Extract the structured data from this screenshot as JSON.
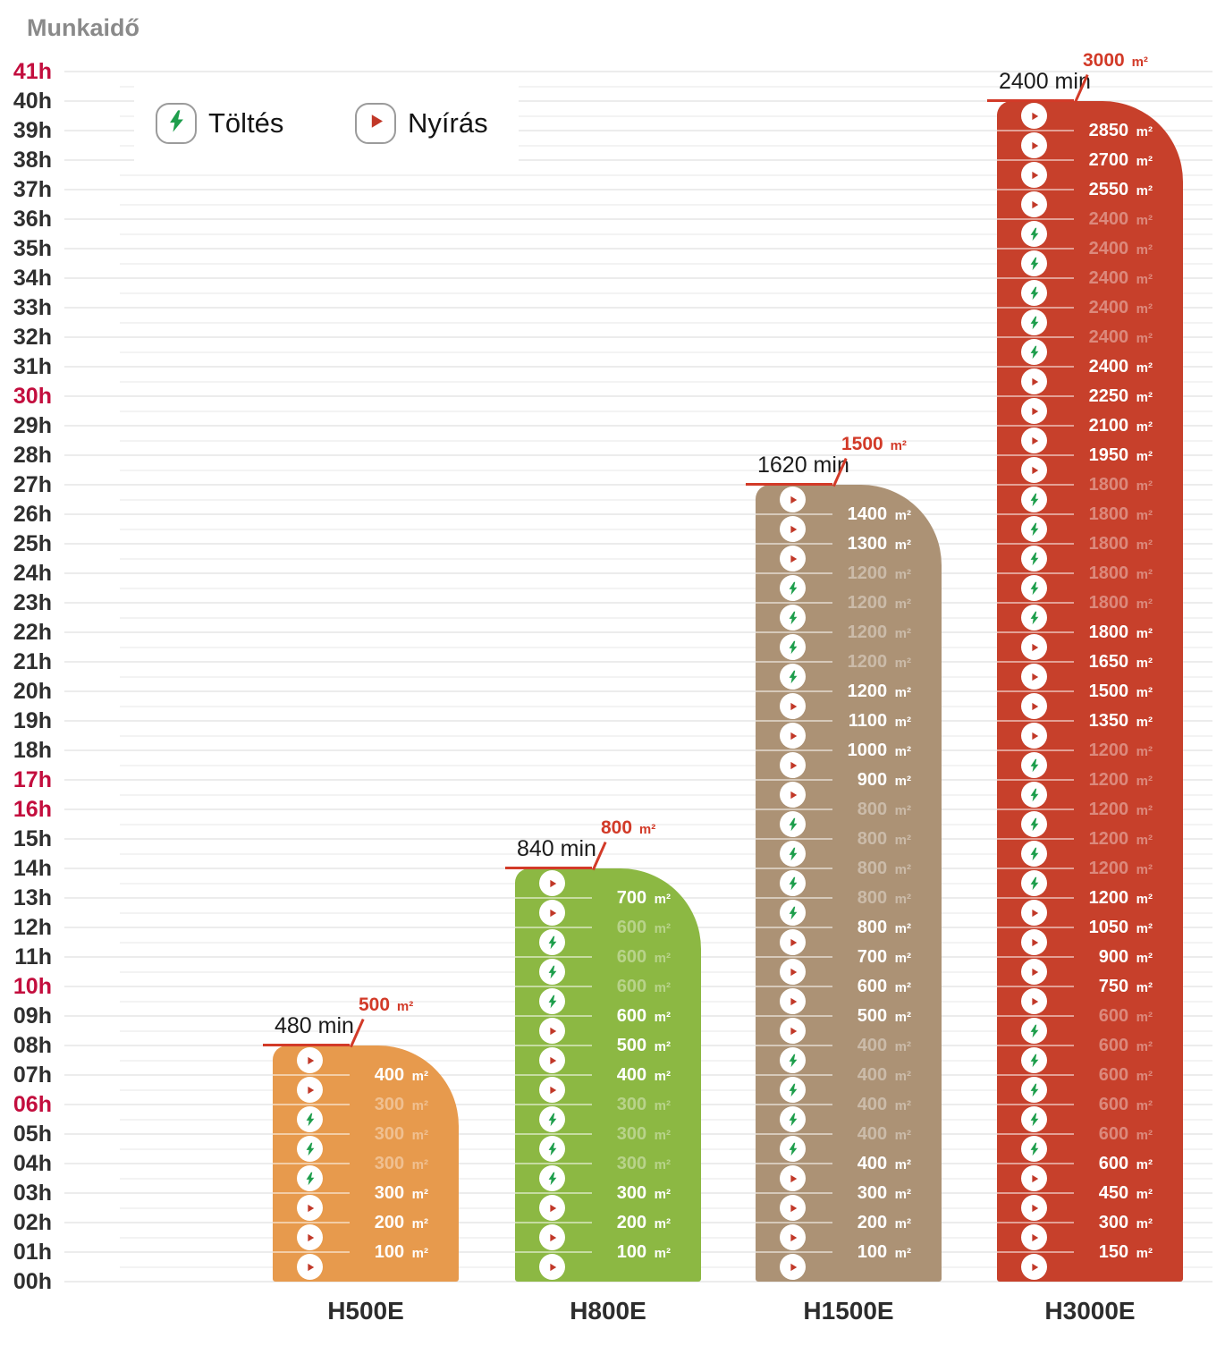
{
  "title": "Munkaidő",
  "legend": {
    "charge_label": "Töltés",
    "mow_label": "Nyírás"
  },
  "colors": {
    "h500e_bar": "#E79A4D",
    "h800e_bar": "#8CB843",
    "h1500e_bar": "#AC9275",
    "h3000e_bar": "#C7402B",
    "axis_dark": "#2F2F2F",
    "axis_red": "#C30E3E",
    "callout_red": "#D23A28",
    "mow_icon_red": "#C13828",
    "charge_icon_green": "#1E9E4C",
    "title_gray": "#8A8A8A"
  },
  "chart_data": {
    "type": "bar",
    "title": "Munkaidő",
    "categories": [
      "H500E",
      "H800E",
      "H1500E",
      "H3000E"
    ],
    "legend": [
      "Töltés",
      "Nyírás"
    ],
    "area_unit": "m²",
    "y_axis": {
      "unit": "h",
      "min": 0,
      "max": 41,
      "tick_labels": [
        "00h",
        "01h",
        "02h",
        "03h",
        "04h",
        "05h",
        "06h",
        "07h",
        "08h",
        "09h",
        "10h",
        "11h",
        "12h",
        "13h",
        "14h",
        "15h",
        "16h",
        "17h",
        "18h",
        "19h",
        "20h",
        "21h",
        "22h",
        "23h",
        "24h",
        "25h",
        "26h",
        "27h",
        "28h",
        "29h",
        "30h",
        "31h",
        "32h",
        "33h",
        "34h",
        "35h",
        "36h",
        "37h",
        "38h",
        "39h",
        "40h",
        "41h"
      ],
      "red_tick_labels": [
        "41h",
        "30h",
        "17h",
        "16h",
        "10h",
        "06h"
      ]
    },
    "bars": [
      {
        "model": "H500E",
        "duration_label": "480 min",
        "duration_min": 480,
        "total_area": "500",
        "total_area_m2": 500,
        "hours": 8,
        "color_key": "h500e_bar",
        "rows_top_down": [
          {
            "icon": "mow",
            "area": "400",
            "faded": false
          },
          {
            "icon": "mow",
            "area": "300",
            "faded": true
          },
          {
            "icon": "charge",
            "area": "300",
            "faded": true
          },
          {
            "icon": "charge",
            "area": "300",
            "faded": true
          },
          {
            "icon": "charge",
            "area": "300",
            "faded": false
          },
          {
            "icon": "mow",
            "area": "200",
            "faded": false
          },
          {
            "icon": "mow",
            "area": "100",
            "faded": false
          },
          {
            "icon": "mow",
            "area": null,
            "faded": false
          }
        ]
      },
      {
        "model": "H800E",
        "duration_label": "840 min",
        "duration_min": 840,
        "total_area": "800",
        "total_area_m2": 800,
        "hours": 14,
        "color_key": "h800e_bar",
        "rows_top_down": [
          {
            "icon": "mow",
            "area": "700",
            "faded": false
          },
          {
            "icon": "mow",
            "area": "600",
            "faded": true
          },
          {
            "icon": "charge",
            "area": "600",
            "faded": true
          },
          {
            "icon": "charge",
            "area": "600",
            "faded": true
          },
          {
            "icon": "charge",
            "area": "600",
            "faded": false
          },
          {
            "icon": "mow",
            "area": "500",
            "faded": false
          },
          {
            "icon": "mow",
            "area": "400",
            "faded": false
          },
          {
            "icon": "mow",
            "area": "300",
            "faded": true
          },
          {
            "icon": "charge",
            "area": "300",
            "faded": true
          },
          {
            "icon": "charge",
            "area": "300",
            "faded": true
          },
          {
            "icon": "charge",
            "area": "300",
            "faded": false
          },
          {
            "icon": "mow",
            "area": "200",
            "faded": false
          },
          {
            "icon": "mow",
            "area": "100",
            "faded": false
          },
          {
            "icon": "mow",
            "area": null,
            "faded": false
          }
        ]
      },
      {
        "model": "H1500E",
        "duration_label": "1620 min",
        "duration_min": 1620,
        "total_area": "1500",
        "total_area_m2": 1500,
        "hours": 27,
        "color_key": "h1500e_bar",
        "rows_top_down": [
          {
            "icon": "mow",
            "area": "1400",
            "faded": false
          },
          {
            "icon": "mow",
            "area": "1300",
            "faded": false
          },
          {
            "icon": "mow",
            "area": "1200",
            "faded": true
          },
          {
            "icon": "charge",
            "area": "1200",
            "faded": true
          },
          {
            "icon": "charge",
            "area": "1200",
            "faded": true
          },
          {
            "icon": "charge",
            "area": "1200",
            "faded": true
          },
          {
            "icon": "charge",
            "area": "1200",
            "faded": false
          },
          {
            "icon": "mow",
            "area": "1100",
            "faded": false
          },
          {
            "icon": "mow",
            "area": "1000",
            "faded": false
          },
          {
            "icon": "mow",
            "area": "900",
            "faded": false
          },
          {
            "icon": "mow",
            "area": "800",
            "faded": true
          },
          {
            "icon": "charge",
            "area": "800",
            "faded": true
          },
          {
            "icon": "charge",
            "area": "800",
            "faded": true
          },
          {
            "icon": "charge",
            "area": "800",
            "faded": true
          },
          {
            "icon": "charge",
            "area": "800",
            "faded": false
          },
          {
            "icon": "mow",
            "area": "700",
            "faded": false
          },
          {
            "icon": "mow",
            "area": "600",
            "faded": false
          },
          {
            "icon": "mow",
            "area": "500",
            "faded": false
          },
          {
            "icon": "mow",
            "area": "400",
            "faded": true
          },
          {
            "icon": "charge",
            "area": "400",
            "faded": true
          },
          {
            "icon": "charge",
            "area": "400",
            "faded": true
          },
          {
            "icon": "charge",
            "area": "400",
            "faded": true
          },
          {
            "icon": "charge",
            "area": "400",
            "faded": false
          },
          {
            "icon": "mow",
            "area": "300",
            "faded": false
          },
          {
            "icon": "mow",
            "area": "200",
            "faded": false
          },
          {
            "icon": "mow",
            "area": "100",
            "faded": false
          },
          {
            "icon": "mow",
            "area": null,
            "faded": false
          }
        ]
      },
      {
        "model": "H3000E",
        "duration_label": "2400 min",
        "duration_min": 2400,
        "total_area": "3000",
        "total_area_m2": 3000,
        "hours": 40,
        "color_key": "h3000e_bar",
        "rows_top_down": [
          {
            "icon": "mow",
            "area": "2850",
            "faded": false
          },
          {
            "icon": "mow",
            "area": "2700",
            "faded": false
          },
          {
            "icon": "mow",
            "area": "2550",
            "faded": false
          },
          {
            "icon": "mow",
            "area": "2400",
            "faded": true
          },
          {
            "icon": "charge",
            "area": "2400",
            "faded": true
          },
          {
            "icon": "charge",
            "area": "2400",
            "faded": true
          },
          {
            "icon": "charge",
            "area": "2400",
            "faded": true
          },
          {
            "icon": "charge",
            "area": "2400",
            "faded": true
          },
          {
            "icon": "charge",
            "area": "2400",
            "faded": false
          },
          {
            "icon": "mow",
            "area": "2250",
            "faded": false
          },
          {
            "icon": "mow",
            "area": "2100",
            "faded": false
          },
          {
            "icon": "mow",
            "area": "1950",
            "faded": false
          },
          {
            "icon": "mow",
            "area": "1800",
            "faded": true
          },
          {
            "icon": "charge",
            "area": "1800",
            "faded": true
          },
          {
            "icon": "charge",
            "area": "1800",
            "faded": true
          },
          {
            "icon": "charge",
            "area": "1800",
            "faded": true
          },
          {
            "icon": "charge",
            "area": "1800",
            "faded": true
          },
          {
            "icon": "charge",
            "area": "1800",
            "faded": false
          },
          {
            "icon": "mow",
            "area": "1650",
            "faded": false
          },
          {
            "icon": "mow",
            "area": "1500",
            "faded": false
          },
          {
            "icon": "mow",
            "area": "1350",
            "faded": false
          },
          {
            "icon": "mow",
            "area": "1200",
            "faded": true
          },
          {
            "icon": "charge",
            "area": "1200",
            "faded": true
          },
          {
            "icon": "charge",
            "area": "1200",
            "faded": true
          },
          {
            "icon": "charge",
            "area": "1200",
            "faded": true
          },
          {
            "icon": "charge",
            "area": "1200",
            "faded": true
          },
          {
            "icon": "charge",
            "area": "1200",
            "faded": false
          },
          {
            "icon": "mow",
            "area": "1050",
            "faded": false
          },
          {
            "icon": "mow",
            "area": "900",
            "faded": false
          },
          {
            "icon": "mow",
            "area": "750",
            "faded": false
          },
          {
            "icon": "mow",
            "area": "600",
            "faded": true
          },
          {
            "icon": "charge",
            "area": "600",
            "faded": true
          },
          {
            "icon": "charge",
            "area": "600",
            "faded": true
          },
          {
            "icon": "charge",
            "area": "600",
            "faded": true
          },
          {
            "icon": "charge",
            "area": "600",
            "faded": true
          },
          {
            "icon": "charge",
            "area": "600",
            "faded": false
          },
          {
            "icon": "mow",
            "area": "450",
            "faded": false
          },
          {
            "icon": "mow",
            "area": "300",
            "faded": false
          },
          {
            "icon": "mow",
            "area": "150",
            "faded": false
          },
          {
            "icon": "mow",
            "area": null,
            "faded": false
          }
        ]
      }
    ]
  }
}
